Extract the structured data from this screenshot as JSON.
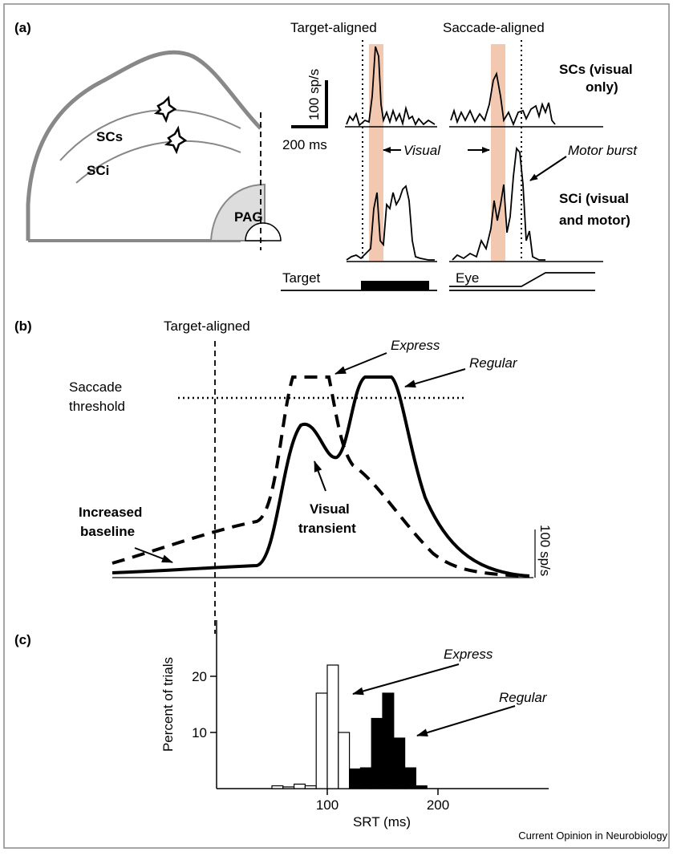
{
  "panel_a": {
    "label": "(a)",
    "target_aligned": "Target-aligned",
    "saccade_aligned": "Saccade-aligned",
    "scale_rate": "100 sp/s",
    "scale_time": "200 ms",
    "scs_trace_label": [
      "SCs (visual",
      "only)"
    ],
    "sci_trace_label": [
      "SCi (visual",
      "and motor)"
    ],
    "visual": "Visual",
    "motor_burst": "Motor burst",
    "scs": "SCs",
    "sci": "SCi",
    "pag": "PAG",
    "target": "Target",
    "eye": "Eye"
  },
  "panel_b": {
    "label": "(b)",
    "target_aligned": "Target-aligned",
    "threshold": [
      "Saccade",
      "threshold"
    ],
    "express": "Express",
    "regular": "Regular",
    "baseline": [
      "Increased",
      "baseline"
    ],
    "transient": [
      "Visual",
      "transient"
    ],
    "scale": "100 sp/s"
  },
  "chart_data": {
    "type": "histogram",
    "label": "(c)",
    "xlabel": "SRT (ms)",
    "ylabel": "Percent of trials",
    "bins": [
      50,
      60,
      70,
      80,
      90,
      100,
      110,
      120,
      130,
      140,
      150,
      160,
      170,
      180,
      190
    ],
    "values": [
      0.5,
      0.3,
      0.8,
      0.5,
      17,
      22,
      10,
      3.5,
      3.7,
      12.5,
      17,
      9,
      3.7,
      0.5
    ],
    "bar_colors": [
      "#ffffff",
      "#ffffff",
      "#ffffff",
      "#ffffff",
      "#ffffff",
      "#ffffff",
      "#ffffff",
      "#000000",
      "#000000",
      "#000000",
      "#000000",
      "#000000",
      "#000000",
      "#000000"
    ],
    "xlim": [
      0,
      300
    ],
    "ylim": [
      0,
      30
    ],
    "xticks": [
      100,
      200
    ],
    "yticks": [
      10,
      20
    ],
    "annotations": [
      "Express",
      "Regular"
    ]
  },
  "footer": "Current Opinion in Neurobiology"
}
